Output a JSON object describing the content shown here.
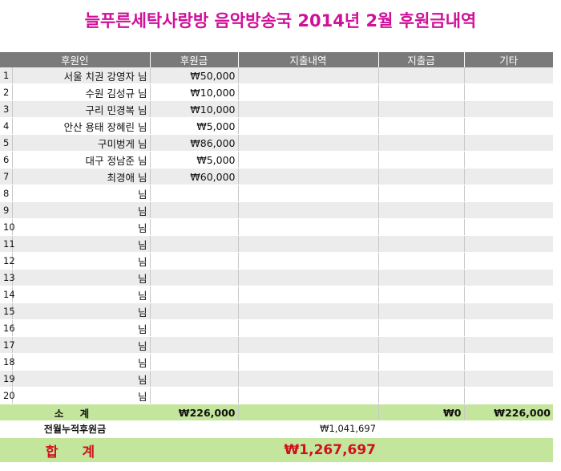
{
  "title": "늘푸른세탁사랑방 음악방송국 2014년 2월 후원금내역",
  "headers": [
    "후원인",
    "후원금",
    "지출내역",
    "지출금",
    "기타"
  ],
  "suffix": "님",
  "rows": [
    {
      "num": "1",
      "name": "서울 치권 강영자",
      "amount": "₩50,000"
    },
    {
      "num": "2",
      "name": "수원 김성규",
      "amount": "₩10,000"
    },
    {
      "num": "3",
      "name": "구리 민경복",
      "amount": "₩10,000"
    },
    {
      "num": "4",
      "name": "안산 용태 장혜린",
      "amount": "₩5,000"
    },
    {
      "num": "5",
      "name": "구미벙게",
      "amount": "₩86,000"
    },
    {
      "num": "6",
      "name": "대구 정남준",
      "amount": "₩5,000"
    },
    {
      "num": "7",
      "name": "최경애",
      "amount": "₩60,000"
    },
    {
      "num": "8",
      "name": "",
      "amount": ""
    },
    {
      "num": "9",
      "name": "",
      "amount": ""
    },
    {
      "num": "10",
      "name": "",
      "amount": ""
    },
    {
      "num": "11",
      "name": "",
      "amount": ""
    },
    {
      "num": "12",
      "name": "",
      "amount": ""
    },
    {
      "num": "13",
      "name": "",
      "amount": ""
    },
    {
      "num": "14",
      "name": "",
      "amount": ""
    },
    {
      "num": "15",
      "name": "",
      "amount": ""
    },
    {
      "num": "16",
      "name": "",
      "amount": ""
    },
    {
      "num": "17",
      "name": "",
      "amount": ""
    },
    {
      "num": "18",
      "name": "",
      "amount": ""
    },
    {
      "num": "19",
      "name": "",
      "amount": ""
    },
    {
      "num": "20",
      "name": "",
      "amount": ""
    }
  ],
  "subtotal": {
    "label": "소 계",
    "donation": "₩226,000",
    "expense": "₩0",
    "other": "₩226,000"
  },
  "previous": {
    "label": "전월누적후원금",
    "value": "₩1,041,697"
  },
  "total": {
    "label": "합 계",
    "value": "₩1,267,697"
  },
  "colors": {
    "title": "#d0109a",
    "header_bg": "#7a7a7a",
    "row_even": "#ececec",
    "row_odd": "#ffffff",
    "summary_bg": "#c4e59c",
    "total_text": "#d0101e"
  }
}
